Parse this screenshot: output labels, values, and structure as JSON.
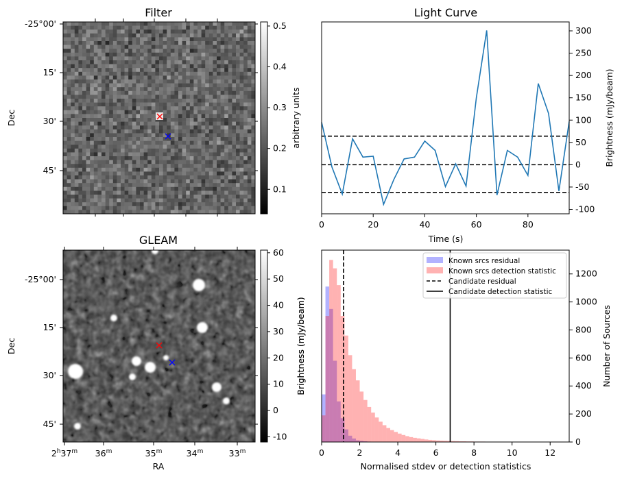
{
  "filter_panel": {
    "title": "Filter",
    "ylabel": "Dec",
    "colorbar_label": "arbitrary units",
    "dec_ticks": [
      "-25°00'",
      "15'",
      "30'",
      "45'"
    ],
    "colorbar_ticks": [
      "0.1",
      "0.2",
      "0.3",
      "0.4",
      "0.5"
    ],
    "colorbar_range": [
      0.04,
      0.51
    ],
    "colormap": "gray"
  },
  "gleam_panel": {
    "title": "GLEAM",
    "xlabel": "RA",
    "ylabel": "Dec",
    "colorbar_label": "Brightness (mJy/beam)",
    "dec_ticks": [
      "-25°00'",
      "15'",
      "30'",
      "45'"
    ],
    "ra_ticks": [
      {
        "main": "2",
        "h": "h",
        "m": "37",
        "sup": "m"
      },
      {
        "main": "",
        "h": "",
        "m": "36",
        "sup": "m"
      },
      {
        "main": "",
        "h": "",
        "m": "35",
        "sup": "m"
      },
      {
        "main": "",
        "h": "",
        "m": "34",
        "sup": "m"
      },
      {
        "main": "",
        "h": "",
        "m": "33",
        "sup": "m"
      }
    ],
    "colorbar_ticks": [
      "-10",
      "0",
      "10",
      "20",
      "30",
      "40",
      "50",
      "60"
    ],
    "colorbar_range": [
      -12,
      61
    ],
    "colormap": "gray"
  },
  "markers": {
    "red_color": "#ff0000",
    "blue_color": "#0000ff"
  },
  "chart_data": [
    {
      "type": "line",
      "title": "Light Curve",
      "xlabel": "Time (s)",
      "ylabel": "Brightness (mJy/beam)",
      "xlim": [
        0,
        96
      ],
      "ylim": [
        -110,
        320
      ],
      "xticks": [
        0,
        20,
        40,
        60,
        80
      ],
      "yticks": [
        -100,
        -50,
        0,
        50,
        100,
        150,
        200,
        250,
        300
      ],
      "color": "#1f77b4",
      "x": [
        0,
        4,
        8,
        12,
        16,
        20,
        24,
        28,
        32,
        36,
        40,
        44,
        48,
        52,
        56,
        60,
        64,
        68,
        72,
        76,
        80,
        84,
        88,
        92,
        96
      ],
      "y": [
        95,
        -5,
        -66,
        58,
        17,
        19,
        -89,
        -33,
        13,
        17,
        53,
        32,
        -49,
        2,
        -48,
        150,
        301,
        -68,
        32,
        17,
        -24,
        182,
        115,
        -59,
        97
      ],
      "hlines": [
        {
          "y": 64,
          "style": "dashed"
        },
        {
          "y": 0,
          "style": "dashed"
        },
        {
          "y": -62,
          "style": "dashed"
        }
      ]
    },
    {
      "type": "bar",
      "xlabel": "Normalised stdev or detection statistics",
      "ylabel": "Number of Sources",
      "left_label": "Brightness (mJy/beam)",
      "xlim": [
        0,
        13
      ],
      "ylim": [
        0,
        1370
      ],
      "xticks": [
        0,
        2,
        4,
        6,
        8,
        10,
        12
      ],
      "yticks": [
        0,
        200,
        400,
        600,
        800,
        1000,
        1200
      ],
      "bin_width": 0.2,
      "series": [
        {
          "name": "Known srcs residual",
          "color": "#0000ff",
          "alpha": 0.3,
          "bin_start": 0,
          "values": [
            340,
            1110,
            950,
            580,
            290,
            170,
            90,
            45,
            25,
            12,
            8,
            5,
            3,
            2,
            1
          ]
        },
        {
          "name": "Known srcs detection statistic",
          "color": "#ff0000",
          "alpha": 0.3,
          "bin_start": 0,
          "values": [
            190,
            900,
            1300,
            1240,
            1120,
            900,
            760,
            620,
            520,
            440,
            360,
            300,
            250,
            210,
            175,
            145,
            120,
            100,
            85,
            72,
            60,
            50,
            42,
            35,
            30,
            26,
            22,
            18,
            15,
            13,
            11,
            10,
            9,
            8,
            7,
            6,
            5,
            5,
            4,
            4,
            3,
            3,
            3,
            2,
            2,
            2,
            2,
            2,
            1,
            1,
            1,
            1,
            1
          ]
        }
      ],
      "vlines": [
        {
          "name": "Candidate residual",
          "x": 1.15,
          "style": "dashed"
        },
        {
          "name": "Candidate detection statistic",
          "x": 6.75,
          "style": "solid"
        }
      ],
      "legend_position": "top-right"
    }
  ]
}
